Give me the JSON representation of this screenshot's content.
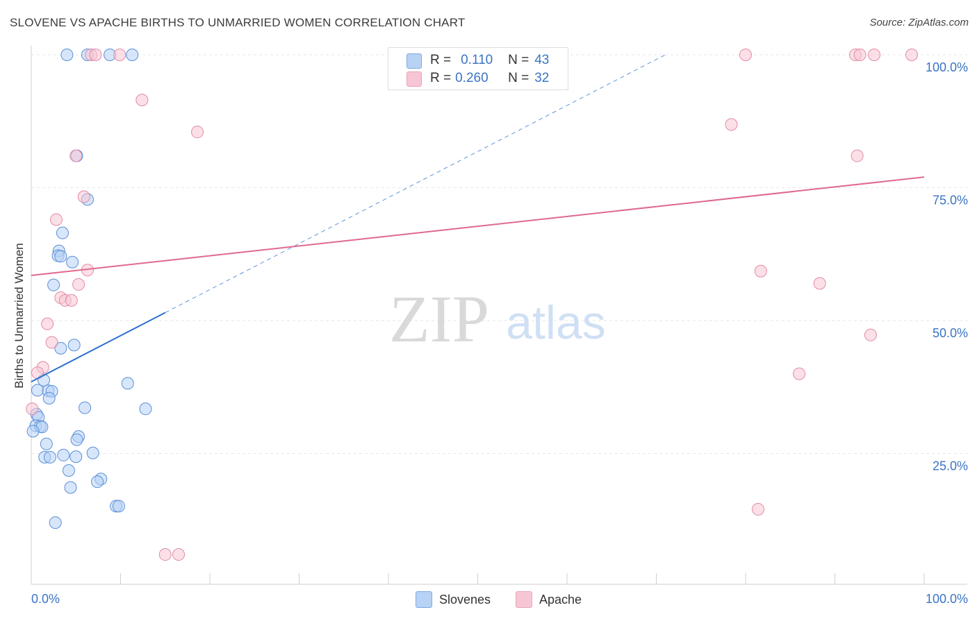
{
  "header": {
    "title": "SLOVENE VS APACHE BIRTHS TO UNMARRIED WOMEN CORRELATION CHART",
    "source": "Source: ZipAtlas.com"
  },
  "watermark": {
    "zip": "ZIP",
    "atlas": "atlas"
  },
  "legend": {
    "r_label": "R =",
    "n_label": "N =",
    "slovenes": {
      "r": "0.110",
      "n": "43"
    },
    "apache": {
      "r": "0.260",
      "n": "32"
    }
  },
  "bottom_legend": {
    "slovenes": "Slovenes",
    "apache": "Apache"
  },
  "colors": {
    "slovenes_fill": "#b7d2f5",
    "slovenes_stroke": "#5b8fd6",
    "slovenes_line": "#2a6fcf",
    "apache_fill": "#f7c6d4",
    "apache_stroke": "#e28aa6",
    "apache_line": "#e0688f",
    "axis_value": "#3a74c4",
    "grid": "#e6e6e6"
  },
  "chart_data": {
    "type": "scatter",
    "title": "SLOVENE VS APACHE BIRTHS TO UNMARRIED WOMEN CORRELATION CHART",
    "xlabel": "",
    "ylabel": "Births to Unmarried Women",
    "xlim": [
      0,
      100
    ],
    "ylim": [
      0,
      100
    ],
    "x_tick_labels": [
      "0.0%",
      "100.0%"
    ],
    "y_ticks": [
      25,
      50,
      75,
      100
    ],
    "y_tick_labels": [
      "25.0%",
      "50.0%",
      "75.0%",
      "100.0%"
    ],
    "series": [
      {
        "name": "Slovenes",
        "r": 0.11,
        "n": 43,
        "trend": {
          "x0": 0,
          "y0": 38.5,
          "x1": 15,
          "y1": 51.5,
          "extended_to": [
            71,
            100
          ]
        },
        "points": [
          [
            4.0,
            100
          ],
          [
            6.3,
            100
          ],
          [
            8.8,
            100
          ],
          [
            11.3,
            100
          ],
          [
            5.1,
            81.0
          ],
          [
            6.3,
            72.8
          ],
          [
            3.5,
            66.5
          ],
          [
            3.1,
            63.1
          ],
          [
            3.0,
            62.2
          ],
          [
            3.3,
            62.1
          ],
          [
            4.6,
            61.0
          ],
          [
            2.5,
            56.7
          ],
          [
            3.3,
            44.8
          ],
          [
            4.8,
            45.4
          ],
          [
            1.4,
            38.8
          ],
          [
            10.8,
            38.2
          ],
          [
            0.7,
            36.9
          ],
          [
            1.9,
            36.8
          ],
          [
            2.3,
            36.7
          ],
          [
            2.0,
            35.4
          ],
          [
            6.0,
            33.6
          ],
          [
            12.8,
            33.4
          ],
          [
            0.6,
            32.4
          ],
          [
            0.8,
            31.8
          ],
          [
            0.5,
            30.2
          ],
          [
            1.0,
            30.1
          ],
          [
            1.2,
            30.0
          ],
          [
            0.2,
            29.2
          ],
          [
            5.3,
            28.2
          ],
          [
            5.1,
            27.6
          ],
          [
            1.7,
            26.8
          ],
          [
            6.9,
            25.1
          ],
          [
            3.6,
            24.7
          ],
          [
            1.5,
            24.3
          ],
          [
            2.1,
            24.3
          ],
          [
            5.0,
            24.4
          ],
          [
            4.2,
            21.8
          ],
          [
            7.8,
            20.2
          ],
          [
            7.4,
            19.7
          ],
          [
            4.4,
            18.6
          ],
          [
            9.5,
            15.1
          ],
          [
            9.8,
            15.1
          ],
          [
            2.7,
            12.0
          ]
        ]
      },
      {
        "name": "Apache",
        "r": 0.26,
        "n": 32,
        "trend": {
          "x0": 0,
          "y0": 58.5,
          "x1": 100,
          "y1": 77.0
        },
        "points": [
          [
            6.7,
            100
          ],
          [
            7.2,
            100
          ],
          [
            9.9,
            100
          ],
          [
            80.0,
            100
          ],
          [
            92.3,
            100
          ],
          [
            92.8,
            100
          ],
          [
            94.4,
            100
          ],
          [
            98.6,
            100
          ],
          [
            12.4,
            91.5
          ],
          [
            18.6,
            85.5
          ],
          [
            78.4,
            86.9
          ],
          [
            5.0,
            81.0
          ],
          [
            92.5,
            81.0
          ],
          [
            5.9,
            73.3
          ],
          [
            2.8,
            69.0
          ],
          [
            6.3,
            59.5
          ],
          [
            81.7,
            59.3
          ],
          [
            88.3,
            57.0
          ],
          [
            5.3,
            56.8
          ],
          [
            3.3,
            54.3
          ],
          [
            3.8,
            53.8
          ],
          [
            4.5,
            53.8
          ],
          [
            1.8,
            49.4
          ],
          [
            2.3,
            45.9
          ],
          [
            94.0,
            47.3
          ],
          [
            1.3,
            41.2
          ],
          [
            0.7,
            40.2
          ],
          [
            86.0,
            40.0
          ],
          [
            0.1,
            33.4
          ],
          [
            81.4,
            14.5
          ],
          [
            15.0,
            6.0
          ],
          [
            16.5,
            6.0
          ]
        ]
      }
    ]
  }
}
